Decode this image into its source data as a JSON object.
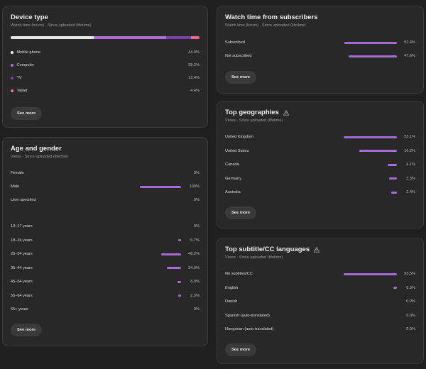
{
  "device": {
    "title": "Device type",
    "subtitle": "Watch time (hours) · Since uploaded (lifetime)",
    "rows": [
      {
        "label": "Mobile phone",
        "value": "44.0%",
        "pct": 44.0,
        "color": "#e8e8e8"
      },
      {
        "label": "Computer",
        "value": "38.2%",
        "pct": 38.2,
        "color": "#b06ed8"
      },
      {
        "label": "TV",
        "value": "13.4%",
        "pct": 13.4,
        "color": "#7b3fb0"
      },
      {
        "label": "Tablet",
        "value": "4.4%",
        "pct": 4.4,
        "color": "#e86a8a"
      }
    ],
    "see_more": "See more"
  },
  "age_gender": {
    "title": "Age and gender",
    "subtitle": "Views · Since uploaded (lifetime)",
    "gender": [
      {
        "label": "Female",
        "value": "0%",
        "pct": 0
      },
      {
        "label": "Male",
        "value": "100%",
        "pct": 100
      },
      {
        "label": "User specified",
        "value": "0%",
        "pct": 0
      }
    ],
    "ages": [
      {
        "label": "13–17 years",
        "value": "0%",
        "pct": 0
      },
      {
        "label": "18–24 years",
        "value": "6.7%",
        "pct": 6.7
      },
      {
        "label": "25–34 years",
        "value": "48.2%",
        "pct": 48.2
      },
      {
        "label": "35–44 years",
        "value": "34.0%",
        "pct": 34.0
      },
      {
        "label": "45–54 years",
        "value": "8.9%",
        "pct": 8.9
      },
      {
        "label": "55–64 years",
        "value": "2.3%",
        "pct": 2.3
      },
      {
        "label": "65+ years",
        "value": "0%",
        "pct": 0
      }
    ],
    "see_more": "See more"
  },
  "subscribers": {
    "title": "Watch time from subscribers",
    "subtitle": "Watch time (hours) · Since uploaded (lifetime)",
    "rows": [
      {
        "label": "Subscribed",
        "value": "52.4%",
        "pct": 52.4
      },
      {
        "label": "Not subscribed",
        "value": "47.6%",
        "pct": 47.6
      }
    ],
    "see_more": "See more"
  },
  "geographies": {
    "title": "Top geographies",
    "subtitle": "Views · Since uploaded (lifetime)",
    "rows": [
      {
        "label": "United Kingdom",
        "value": "23.1%",
        "pct": 23.1
      },
      {
        "label": "United States",
        "value": "16.2%",
        "pct": 16.2
      },
      {
        "label": "Canada",
        "value": "4.1%",
        "pct": 4.1
      },
      {
        "label": "Germany",
        "value": "3.3%",
        "pct": 3.3
      },
      {
        "label": "Australia",
        "value": "2.4%",
        "pct": 2.4
      }
    ],
    "see_more": "See more",
    "icon": "warning-icon"
  },
  "languages": {
    "title": "Top subtitle/CC languages",
    "subtitle": "Views · Since uploaded (lifetime)",
    "rows": [
      {
        "label": "No subtitles/CC",
        "value": "93.5%",
        "pct": 93.5
      },
      {
        "label": "English",
        "value": "6.3%",
        "pct": 6.3
      },
      {
        "label": "Danish",
        "value": "0.0%",
        "pct": 0.0
      },
      {
        "label": "Spanish (auto-translated)",
        "value": "0.0%",
        "pct": 0.0
      },
      {
        "label": "Hungarian (auto-translated)",
        "value": "0.0%",
        "pct": 0.0
      }
    ],
    "see_more": "See more",
    "icon": "warning-icon"
  },
  "colors": {
    "accent": "#a86ad7",
    "background": "#1f1f1f",
    "card": "#282828"
  }
}
